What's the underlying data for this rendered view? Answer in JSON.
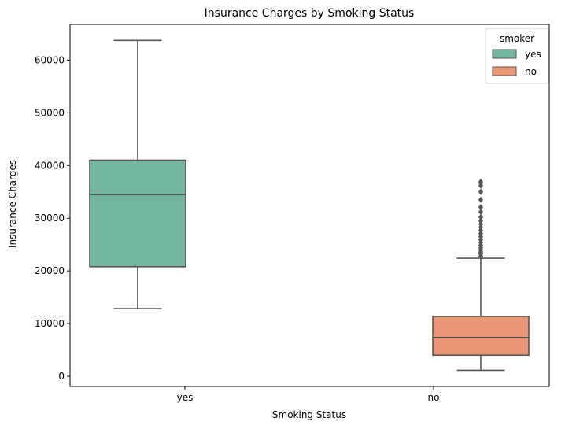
{
  "chart_data": {
    "type": "box",
    "title": "Insurance Charges by Smoking Status",
    "xlabel": "Smoking Status",
    "ylabel": "Insurance Charges",
    "categories": [
      "yes",
      "no"
    ],
    "ylim": [
      -1950,
      66800
    ],
    "yticks": [
      0,
      10000,
      20000,
      30000,
      40000,
      50000,
      60000
    ],
    "grid": false,
    "legend": {
      "title": "smoker",
      "placement": "top-right",
      "entries": [
        "yes",
        "no"
      ]
    },
    "series": [
      {
        "name": "yes",
        "color": "#72b6a1",
        "boxes": [
          {
            "category": "yes",
            "whisker_low": 12830,
            "q1": 20800,
            "median": 34460,
            "q3": 41020,
            "whisker_high": 63770,
            "outliers": []
          }
        ]
      },
      {
        "name": "no",
        "color": "#e99675",
        "boxes": [
          {
            "category": "no",
            "whisker_low": 1120,
            "q1": 3990,
            "median": 7345,
            "q3": 11360,
            "whisker_high": 22400,
            "outliers": [
              22800,
              23200,
              23600,
              24000,
              24400,
              24900,
              25400,
              25900,
              26500,
              27100,
              27700,
              28300,
              28900,
              29500,
              30200,
              31200,
              32100,
              33500,
              35000,
              36200,
              36700,
              36900
            ]
          }
        ]
      }
    ],
    "colors": {
      "line": "#555555",
      "axis": "#000000"
    }
  }
}
